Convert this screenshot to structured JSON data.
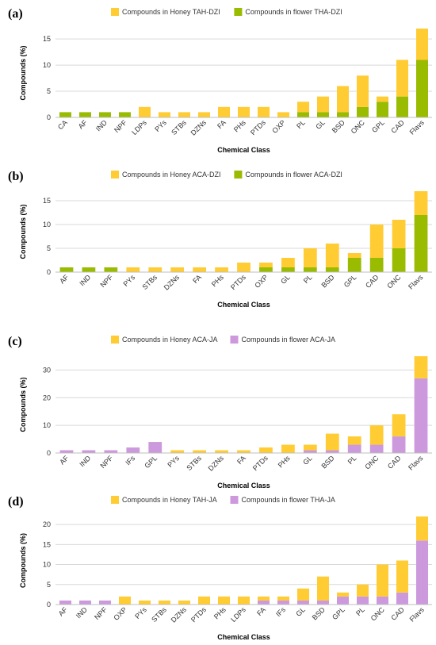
{
  "colors": {
    "honey": "#FFCC33",
    "flower_green": "#99BB00",
    "flower_purple": "#CC99DD"
  },
  "chart_data": [
    {
      "panel": "(a)",
      "type": "bar",
      "stacked": true,
      "xlabel": "Chemical Class",
      "ylabel": "Compounds (%)",
      "ylim": [
        0,
        17
      ],
      "yticks": [
        0,
        5,
        10,
        15
      ],
      "grid": "horizontal",
      "legend_position": "top",
      "categories": [
        "CA",
        "AF",
        "IND",
        "NPF",
        "LDPs",
        "PYs",
        "STBs",
        "DZNs",
        "FA",
        "PHs",
        "PTDs",
        "OXP",
        "PL",
        "GL",
        "BSD",
        "ONC",
        "GPL",
        "CAD",
        "Flavs"
      ],
      "series": [
        {
          "name": "Compounds in flower THA-DZI",
          "color": "#99BB00",
          "values": [
            1,
            1,
            1,
            1,
            0,
            0,
            0,
            0,
            0,
            0,
            0,
            0,
            1,
            1,
            1,
            2,
            3,
            4,
            11
          ]
        },
        {
          "name": "Compounds in Honey TAH-DZI",
          "color": "#FFCC33",
          "values": [
            0,
            0,
            0,
            0,
            2,
            1,
            1,
            1,
            2,
            2,
            2,
            1,
            2,
            3,
            5,
            6,
            1,
            7,
            6
          ]
        }
      ]
    },
    {
      "panel": "(b)",
      "type": "bar",
      "stacked": true,
      "xlabel": "Chemical Class",
      "ylabel": "Compounds (%)",
      "ylim": [
        0,
        17
      ],
      "yticks": [
        0,
        5,
        10,
        15
      ],
      "grid": "horizontal",
      "legend_position": "top",
      "categories": [
        "AF",
        "IND",
        "NPF",
        "PYs",
        "STBs",
        "DZNs",
        "FA",
        "PHs",
        "PTDs",
        "OXP",
        "GL",
        "PL",
        "BSD",
        "GPL",
        "CAD",
        "ONC",
        "Flavs"
      ],
      "series": [
        {
          "name": "Compounds in flower ACA-DZI",
          "color": "#99BB00",
          "values": [
            1,
            1,
            1,
            0,
            0,
            0,
            0,
            0,
            0,
            1,
            1,
            1,
            1,
            3,
            3,
            5,
            12
          ]
        },
        {
          "name": "Compounds in Honey ACA-DZI",
          "color": "#FFCC33",
          "values": [
            0,
            0,
            0,
            1,
            1,
            1,
            1,
            1,
            2,
            1,
            2,
            4,
            5,
            1,
            7,
            6,
            5
          ]
        }
      ]
    },
    {
      "panel": "(c)",
      "type": "bar",
      "stacked": true,
      "xlabel": "Chemical Class",
      "ylabel": "Compounds (%)",
      "ylim": [
        0,
        35
      ],
      "yticks": [
        0,
        10,
        20,
        30
      ],
      "grid": "horizontal",
      "legend_position": "top",
      "categories": [
        "AF",
        "IND",
        "NPF",
        "IFs",
        "GPL",
        "PYs",
        "STBs",
        "DZNs",
        "FA",
        "PTDs",
        "PHs",
        "GL",
        "BSD",
        "PL",
        "ONC",
        "CAD",
        "Flavs"
      ],
      "series": [
        {
          "name": "Compounds in flower ACA-JA",
          "color": "#CC99DD",
          "values": [
            1,
            1,
            1,
            2,
            4,
            0,
            0,
            0,
            0,
            0,
            0,
            1,
            1,
            3,
            3,
            6,
            27
          ]
        },
        {
          "name": "Compounds in Honey ACA-JA",
          "color": "#FFCC33",
          "values": [
            0,
            0,
            0,
            0,
            0,
            1,
            1,
            1,
            1,
            2,
            3,
            2,
            6,
            3,
            7,
            8,
            8
          ]
        }
      ]
    },
    {
      "panel": "(d)",
      "type": "bar",
      "stacked": true,
      "xlabel": "Chemical Class",
      "ylabel": "Compounds (%)",
      "ylim": [
        0,
        22
      ],
      "yticks": [
        0,
        5,
        10,
        15,
        20
      ],
      "grid": "horizontal",
      "legend_position": "top",
      "categories": [
        "AF",
        "IND",
        "NPF",
        "OXP",
        "PYs",
        "STBs",
        "DZNs",
        "PTDs",
        "PHs",
        "LDPs",
        "FA",
        "IFs",
        "GL",
        "BSD",
        "GPL",
        "PL",
        "ONC",
        "CAD",
        "Flavs"
      ],
      "series": [
        {
          "name": "Compounds in flower THA-JA",
          "color": "#CC99DD",
          "values": [
            1,
            1,
            1,
            0,
            0,
            0,
            0,
            0,
            0,
            0,
            1,
            1,
            1,
            1,
            2,
            2,
            2,
            3,
            16
          ]
        },
        {
          "name": "Compounds in Honey TAH-JA",
          "color": "#FFCC33",
          "values": [
            0,
            0,
            0,
            2,
            1,
            1,
            1,
            2,
            2,
            2,
            1,
            1,
            3,
            6,
            1,
            3,
            8,
            8,
            6
          ]
        }
      ]
    }
  ]
}
